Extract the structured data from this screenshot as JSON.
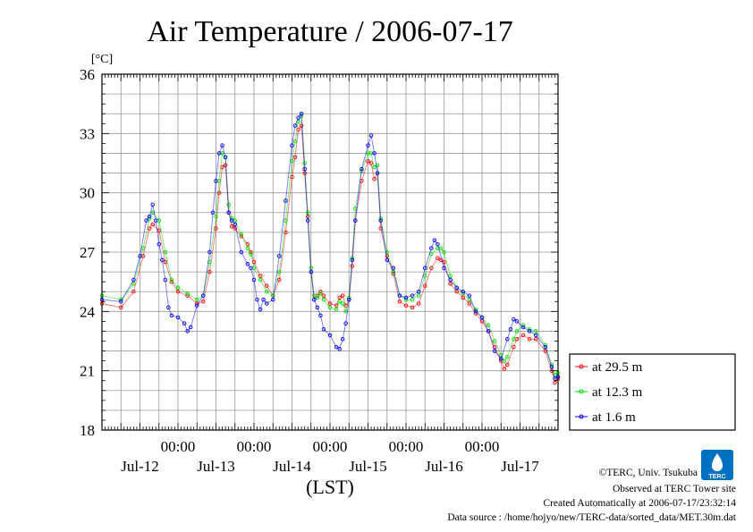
{
  "chart_data": {
    "type": "line",
    "title": "Air Temperature / 2006-07-17",
    "ylabel": "[°C]",
    "xlabel": "(LST)",
    "ylim": [
      18,
      36
    ],
    "yticks": [
      18,
      21,
      24,
      27,
      30,
      33,
      36
    ],
    "xlim_hours": [
      0,
      144
    ],
    "x_unit": "hours from 2006-07-12 00:00 LST",
    "time_tick_label": "00:00",
    "date_labels": [
      "Jul-12",
      "Jul-13",
      "Jul-14",
      "Jul-15",
      "Jul-16",
      "Jul-17"
    ],
    "grid": true,
    "legend_position": "right-bottom",
    "series": [
      {
        "name": "at 29.5 m",
        "color": "#ff0000",
        "points": [
          [
            0,
            24.4
          ],
          [
            6,
            24.2
          ],
          [
            10,
            25.0
          ],
          [
            13,
            26.8
          ],
          [
            15,
            28.2
          ],
          [
            16,
            28.4
          ],
          [
            18,
            28.1
          ],
          [
            20,
            26.5
          ],
          [
            22,
            25.5
          ],
          [
            24,
            25.0
          ],
          [
            27,
            24.8
          ],
          [
            30,
            24.4
          ],
          [
            32,
            24.5
          ],
          [
            34,
            26.0
          ],
          [
            36,
            28.2
          ],
          [
            37,
            30.0
          ],
          [
            38,
            31.3
          ],
          [
            39,
            31.4
          ],
          [
            40,
            29.0
          ],
          [
            41,
            28.3
          ],
          [
            42,
            28.2
          ],
          [
            44,
            27.8
          ],
          [
            46,
            27.4
          ],
          [
            47,
            27.0
          ],
          [
            48,
            26.5
          ],
          [
            50,
            25.8
          ],
          [
            52,
            25.3
          ],
          [
            54,
            24.8
          ],
          [
            56,
            25.6
          ],
          [
            58,
            28.0
          ],
          [
            60,
            30.8
          ],
          [
            61,
            31.8
          ],
          [
            62,
            33.2
          ],
          [
            63,
            33.4
          ],
          [
            64,
            31.0
          ],
          [
            65,
            28.8
          ],
          [
            66,
            26.0
          ],
          [
            67,
            24.6
          ],
          [
            68,
            24.8
          ],
          [
            69,
            25.0
          ],
          [
            70,
            24.8
          ],
          [
            72,
            24.4
          ],
          [
            74,
            24.3
          ],
          [
            75,
            24.7
          ],
          [
            76,
            24.8
          ],
          [
            77,
            24.3
          ],
          [
            78,
            24.6
          ],
          [
            79,
            26.3
          ],
          [
            80,
            28.6
          ],
          [
            82,
            30.6
          ],
          [
            84,
            31.6
          ],
          [
            85,
            31.5
          ],
          [
            86,
            30.7
          ],
          [
            87,
            31.0
          ],
          [
            88,
            28.2
          ],
          [
            90,
            26.8
          ],
          [
            92,
            25.9
          ],
          [
            94,
            24.5
          ],
          [
            96,
            24.3
          ],
          [
            98,
            24.2
          ],
          [
            100,
            24.4
          ],
          [
            102,
            25.3
          ],
          [
            104,
            26.2
          ],
          [
            106,
            26.7
          ],
          [
            107,
            26.6
          ],
          [
            108,
            26.5
          ],
          [
            110,
            25.4
          ],
          [
            112,
            25.0
          ],
          [
            114,
            24.7
          ],
          [
            116,
            24.4
          ],
          [
            118,
            23.9
          ],
          [
            120,
            23.5
          ],
          [
            122,
            23.0
          ],
          [
            124,
            22.2
          ],
          [
            126,
            21.5
          ],
          [
            127,
            21.1
          ],
          [
            128,
            21.3
          ],
          [
            130,
            22.2
          ],
          [
            131,
            22.6
          ],
          [
            133,
            22.8
          ],
          [
            135,
            22.6
          ],
          [
            137,
            22.6
          ],
          [
            140,
            22.0
          ],
          [
            142,
            21.0
          ],
          [
            143,
            20.4
          ],
          [
            144,
            20.6
          ]
        ]
      },
      {
        "name": "at 12.3 m",
        "color": "#00dd00",
        "points": [
          [
            0,
            24.8
          ],
          [
            6,
            24.6
          ],
          [
            10,
            25.4
          ],
          [
            13,
            27.2
          ],
          [
            15,
            28.7
          ],
          [
            16,
            29.0
          ],
          [
            18,
            28.6
          ],
          [
            20,
            27.0
          ],
          [
            22,
            25.6
          ],
          [
            24,
            25.2
          ],
          [
            27,
            24.9
          ],
          [
            30,
            24.6
          ],
          [
            32,
            24.8
          ],
          [
            34,
            26.5
          ],
          [
            36,
            28.8
          ],
          [
            37,
            30.6
          ],
          [
            38,
            32.0
          ],
          [
            39,
            31.8
          ],
          [
            40,
            29.4
          ],
          [
            41,
            28.7
          ],
          [
            42,
            28.6
          ],
          [
            44,
            27.9
          ],
          [
            46,
            27.2
          ],
          [
            47,
            26.9
          ],
          [
            48,
            26.2
          ],
          [
            50,
            25.6
          ],
          [
            52,
            25.0
          ],
          [
            54,
            24.8
          ],
          [
            56,
            26.0
          ],
          [
            58,
            28.6
          ],
          [
            60,
            31.6
          ],
          [
            61,
            32.6
          ],
          [
            62,
            33.6
          ],
          [
            63,
            33.9
          ],
          [
            64,
            31.5
          ],
          [
            65,
            29.0
          ],
          [
            66,
            26.2
          ],
          [
            67,
            24.8
          ],
          [
            68,
            24.7
          ],
          [
            69,
            24.9
          ],
          [
            70,
            24.6
          ],
          [
            72,
            24.2
          ],
          [
            74,
            24.1
          ],
          [
            75,
            24.5
          ],
          [
            76,
            24.4
          ],
          [
            77,
            24.0
          ],
          [
            78,
            24.7
          ],
          [
            79,
            26.7
          ],
          [
            80,
            29.2
          ],
          [
            82,
            31.1
          ],
          [
            84,
            32.0
          ],
          [
            85,
            32.0
          ],
          [
            86,
            31.3
          ],
          [
            87,
            31.4
          ],
          [
            88,
            28.7
          ],
          [
            90,
            27.0
          ],
          [
            92,
            26.0
          ],
          [
            94,
            24.8
          ],
          [
            96,
            24.6
          ],
          [
            98,
            24.6
          ],
          [
            100,
            24.8
          ],
          [
            102,
            25.8
          ],
          [
            104,
            26.9
          ],
          [
            106,
            27.2
          ],
          [
            107,
            27.2
          ],
          [
            108,
            27.0
          ],
          [
            110,
            25.8
          ],
          [
            112,
            25.2
          ],
          [
            114,
            24.9
          ],
          [
            116,
            24.6
          ],
          [
            118,
            24.1
          ],
          [
            120,
            23.7
          ],
          [
            122,
            23.3
          ],
          [
            124,
            22.5
          ],
          [
            126,
            21.8
          ],
          [
            127,
            21.5
          ],
          [
            128,
            21.7
          ],
          [
            130,
            22.6
          ],
          [
            131,
            23.0
          ],
          [
            133,
            23.3
          ],
          [
            135,
            23.1
          ],
          [
            137,
            23.0
          ],
          [
            140,
            22.3
          ],
          [
            142,
            21.3
          ],
          [
            143,
            20.8
          ],
          [
            144,
            20.9
          ]
        ]
      },
      {
        "name": "at 1.6 m",
        "color": "#0000ff",
        "points": [
          [
            0,
            24.6
          ],
          [
            6,
            24.5
          ],
          [
            10,
            25.6
          ],
          [
            12,
            26.8
          ],
          [
            14,
            28.6
          ],
          [
            15,
            28.8
          ],
          [
            16,
            29.4
          ],
          [
            17,
            28.6
          ],
          [
            18,
            27.4
          ],
          [
            19,
            26.6
          ],
          [
            20,
            25.6
          ],
          [
            21,
            24.2
          ],
          [
            22,
            23.8
          ],
          [
            24,
            23.7
          ],
          [
            26,
            23.4
          ],
          [
            27,
            23.0
          ],
          [
            28,
            23.2
          ],
          [
            30,
            24.3
          ],
          [
            32,
            24.8
          ],
          [
            34,
            27.0
          ],
          [
            35,
            29.0
          ],
          [
            36,
            30.6
          ],
          [
            37,
            32.0
          ],
          [
            38,
            32.4
          ],
          [
            39,
            31.8
          ],
          [
            40,
            29.0
          ],
          [
            41,
            28.6
          ],
          [
            42,
            28.4
          ],
          [
            44,
            27.0
          ],
          [
            46,
            26.4
          ],
          [
            47,
            26.2
          ],
          [
            48,
            25.6
          ],
          [
            49,
            24.6
          ],
          [
            50,
            24.1
          ],
          [
            51,
            24.6
          ],
          [
            52,
            24.4
          ],
          [
            54,
            24.6
          ],
          [
            56,
            26.8
          ],
          [
            58,
            29.6
          ],
          [
            60,
            32.4
          ],
          [
            61,
            33.4
          ],
          [
            62,
            33.8
          ],
          [
            63,
            34.0
          ],
          [
            64,
            31.2
          ],
          [
            65,
            28.6
          ],
          [
            66,
            26.0
          ],
          [
            67,
            24.6
          ],
          [
            68,
            24.2
          ],
          [
            69,
            23.8
          ],
          [
            70,
            23.1
          ],
          [
            72,
            22.8
          ],
          [
            74,
            22.2
          ],
          [
            75,
            22.1
          ],
          [
            76,
            22.6
          ],
          [
            77,
            23.4
          ],
          [
            78,
            24.6
          ],
          [
            79,
            26.6
          ],
          [
            80,
            28.6
          ],
          [
            82,
            31.2
          ],
          [
            84,
            32.4
          ],
          [
            85,
            32.9
          ],
          [
            86,
            32.0
          ],
          [
            87,
            31.0
          ],
          [
            88,
            28.6
          ],
          [
            90,
            26.6
          ],
          [
            92,
            26.2
          ],
          [
            94,
            24.8
          ],
          [
            96,
            24.7
          ],
          [
            98,
            24.8
          ],
          [
            100,
            25.0
          ],
          [
            102,
            26.2
          ],
          [
            104,
            27.2
          ],
          [
            105,
            27.6
          ],
          [
            106,
            27.4
          ],
          [
            108,
            26.2
          ],
          [
            110,
            25.6
          ],
          [
            112,
            25.2
          ],
          [
            114,
            25.0
          ],
          [
            116,
            24.8
          ],
          [
            118,
            24.0
          ],
          [
            120,
            23.7
          ],
          [
            122,
            23.0
          ],
          [
            124,
            22.0
          ],
          [
            126,
            21.6
          ],
          [
            128,
            22.6
          ],
          [
            129,
            23.1
          ],
          [
            130,
            23.6
          ],
          [
            131,
            23.5
          ],
          [
            133,
            23.2
          ],
          [
            135,
            23.0
          ],
          [
            137,
            22.8
          ],
          [
            140,
            22.2
          ],
          [
            142,
            21.2
          ],
          [
            143,
            20.6
          ],
          [
            144,
            20.7
          ]
        ]
      }
    ]
  },
  "credits": {
    "copyright": "©TERC, Univ. Tsukuba",
    "observed": "Observed at TERC Tower site",
    "created": "Created Automatically at 2006-07-17/23:32:14",
    "source": "Data source : /home/hojyo/new/TERC-data/sorted_data/MET.30m.dat"
  },
  "logo": {
    "text": "TERC",
    "color": "#0070c0"
  }
}
